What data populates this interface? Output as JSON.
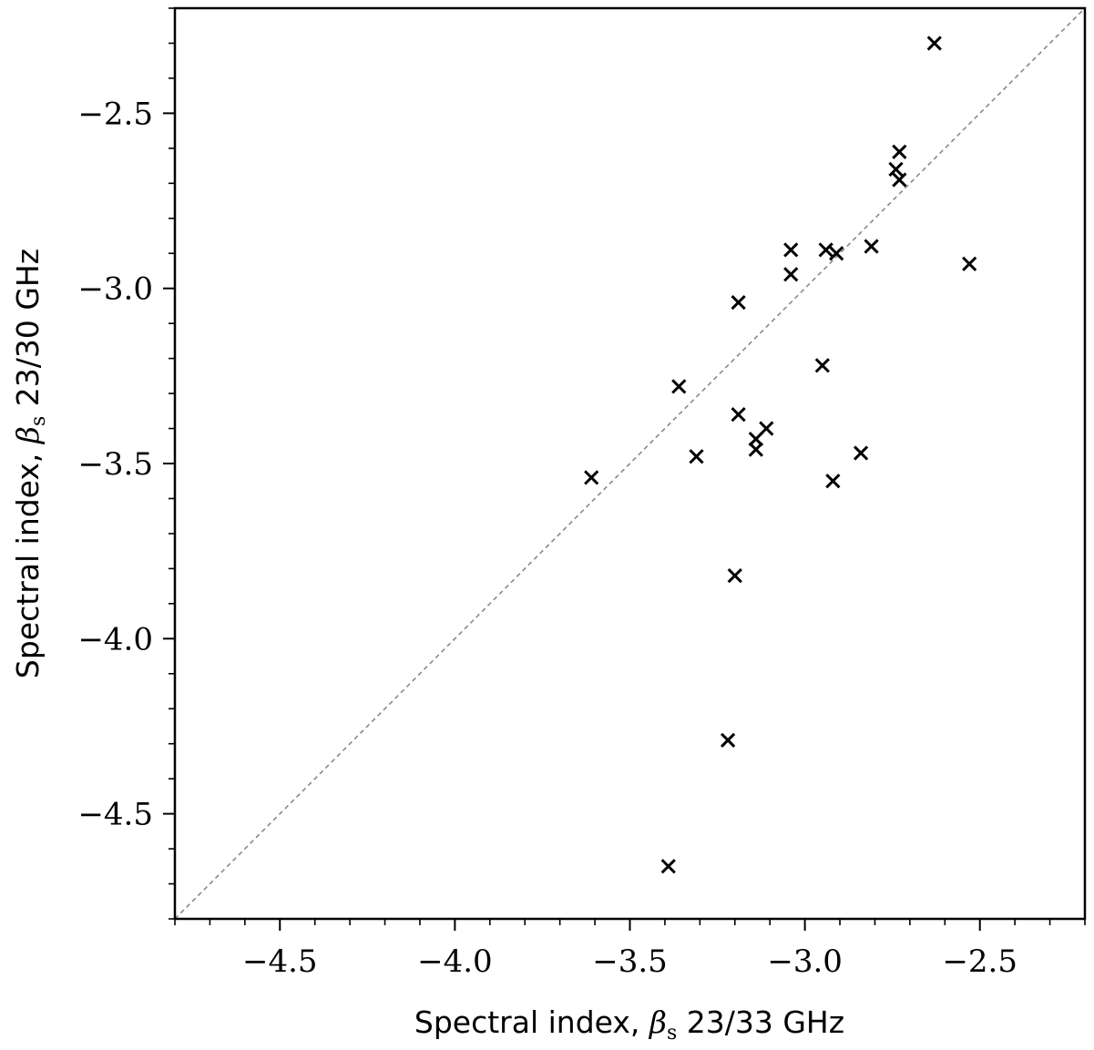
{
  "chart_data": {
    "type": "scatter",
    "xlabel_prefix": "Spectral index, ",
    "xlabel_symbol": "β",
    "xlabel_subscript": "s",
    "xlabel_suffix": " 23/33 GHz",
    "ylabel_prefix": "Spectral index, ",
    "ylabel_symbol": "β",
    "ylabel_subscript": "s",
    "ylabel_suffix": " 23/30 GHz",
    "xlim": [
      -4.8,
      -2.2
    ],
    "ylim": [
      -4.8,
      -2.2
    ],
    "x_ticks": [
      {
        "value": -4.5,
        "label": "−4.5"
      },
      {
        "value": -4.0,
        "label": "−4.0"
      },
      {
        "value": -3.5,
        "label": "−3.5"
      },
      {
        "value": -3.0,
        "label": "−3.0"
      },
      {
        "value": -2.5,
        "label": "−2.5"
      }
    ],
    "y_ticks": [
      {
        "value": -2.5,
        "label": "−2.5"
      },
      {
        "value": -3.0,
        "label": "−3.0"
      },
      {
        "value": -3.5,
        "label": "−3.5"
      },
      {
        "value": -4.0,
        "label": "−4.0"
      },
      {
        "value": -4.5,
        "label": "−4.5"
      }
    ],
    "minor_tick_step": 0.1,
    "reference_line": "y = x",
    "marker": "x",
    "colors": {
      "marker": "#000000",
      "reference_line": "#888888",
      "axes": "#000000"
    },
    "grid": false,
    "points": [
      {
        "x": -2.63,
        "y": -2.3
      },
      {
        "x": -2.73,
        "y": -2.61
      },
      {
        "x": -2.74,
        "y": -2.66
      },
      {
        "x": -2.73,
        "y": -2.69
      },
      {
        "x": -3.04,
        "y": -2.89
      },
      {
        "x": -2.94,
        "y": -2.89
      },
      {
        "x": -2.91,
        "y": -2.9
      },
      {
        "x": -2.81,
        "y": -2.88
      },
      {
        "x": -3.04,
        "y": -2.96
      },
      {
        "x": -2.53,
        "y": -2.93
      },
      {
        "x": -3.19,
        "y": -3.04
      },
      {
        "x": -2.95,
        "y": -3.22
      },
      {
        "x": -3.36,
        "y": -3.28
      },
      {
        "x": -3.19,
        "y": -3.36
      },
      {
        "x": -3.11,
        "y": -3.4
      },
      {
        "x": -3.14,
        "y": -3.43
      },
      {
        "x": -3.14,
        "y": -3.46
      },
      {
        "x": -2.84,
        "y": -3.47
      },
      {
        "x": -3.31,
        "y": -3.48
      },
      {
        "x": -3.61,
        "y": -3.54
      },
      {
        "x": -2.92,
        "y": -3.55
      },
      {
        "x": -3.2,
        "y": -3.82
      },
      {
        "x": -3.22,
        "y": -4.29
      },
      {
        "x": -3.39,
        "y": -4.65
      }
    ]
  }
}
